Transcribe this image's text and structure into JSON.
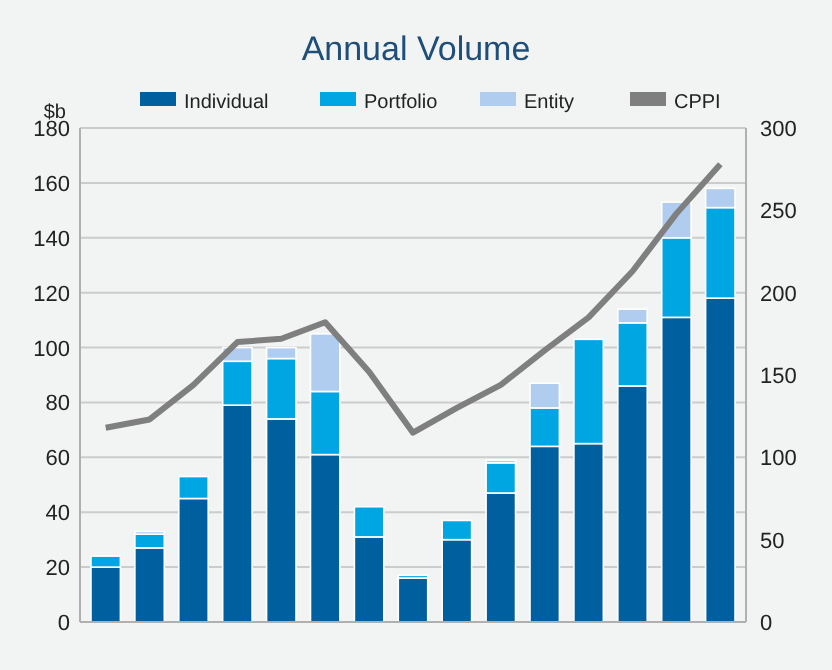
{
  "chart_data": {
    "type": "bar",
    "title": "Annual Volume",
    "ylabel": "$b",
    "stacked": true,
    "legend": "top",
    "grid": "y",
    "categories": [
      null,
      null,
      null,
      null,
      null,
      null,
      null,
      null,
      null,
      null,
      null,
      null,
      null,
      null,
      null
    ],
    "ylim": [
      0,
      180
    ],
    "yticks": [
      0,
      20,
      40,
      60,
      80,
      100,
      120,
      140,
      160,
      180
    ],
    "y2lim": [
      0,
      300
    ],
    "y2ticks": [
      0,
      50,
      100,
      150,
      200,
      250,
      300
    ],
    "series": [
      {
        "name": "Individual",
        "color": "#005f9e",
        "values": [
          20,
          27,
          45,
          79,
          74,
          61,
          31,
          16,
          30,
          47,
          64,
          65,
          86,
          111,
          118
        ]
      },
      {
        "name": "Portfolio",
        "color": "#00a6e2",
        "values": [
          4,
          5,
          8,
          16,
          22,
          23,
          11,
          1,
          7,
          11,
          14,
          38,
          23,
          29,
          33
        ]
      },
      {
        "name": "Entity",
        "color": "#b0cdef",
        "values": [
          null,
          1,
          null,
          5,
          4,
          21,
          null,
          null,
          null,
          1,
          9,
          null,
          5,
          13,
          7
        ]
      },
      {
        "name": "CPPI",
        "type": "line",
        "axis": "y2",
        "color": "#7f7f7f",
        "line_style": "solid",
        "values": [
          118,
          123,
          144,
          170,
          172,
          182,
          152,
          115,
          130,
          144,
          165,
          185,
          213,
          248,
          278
        ]
      }
    ]
  }
}
